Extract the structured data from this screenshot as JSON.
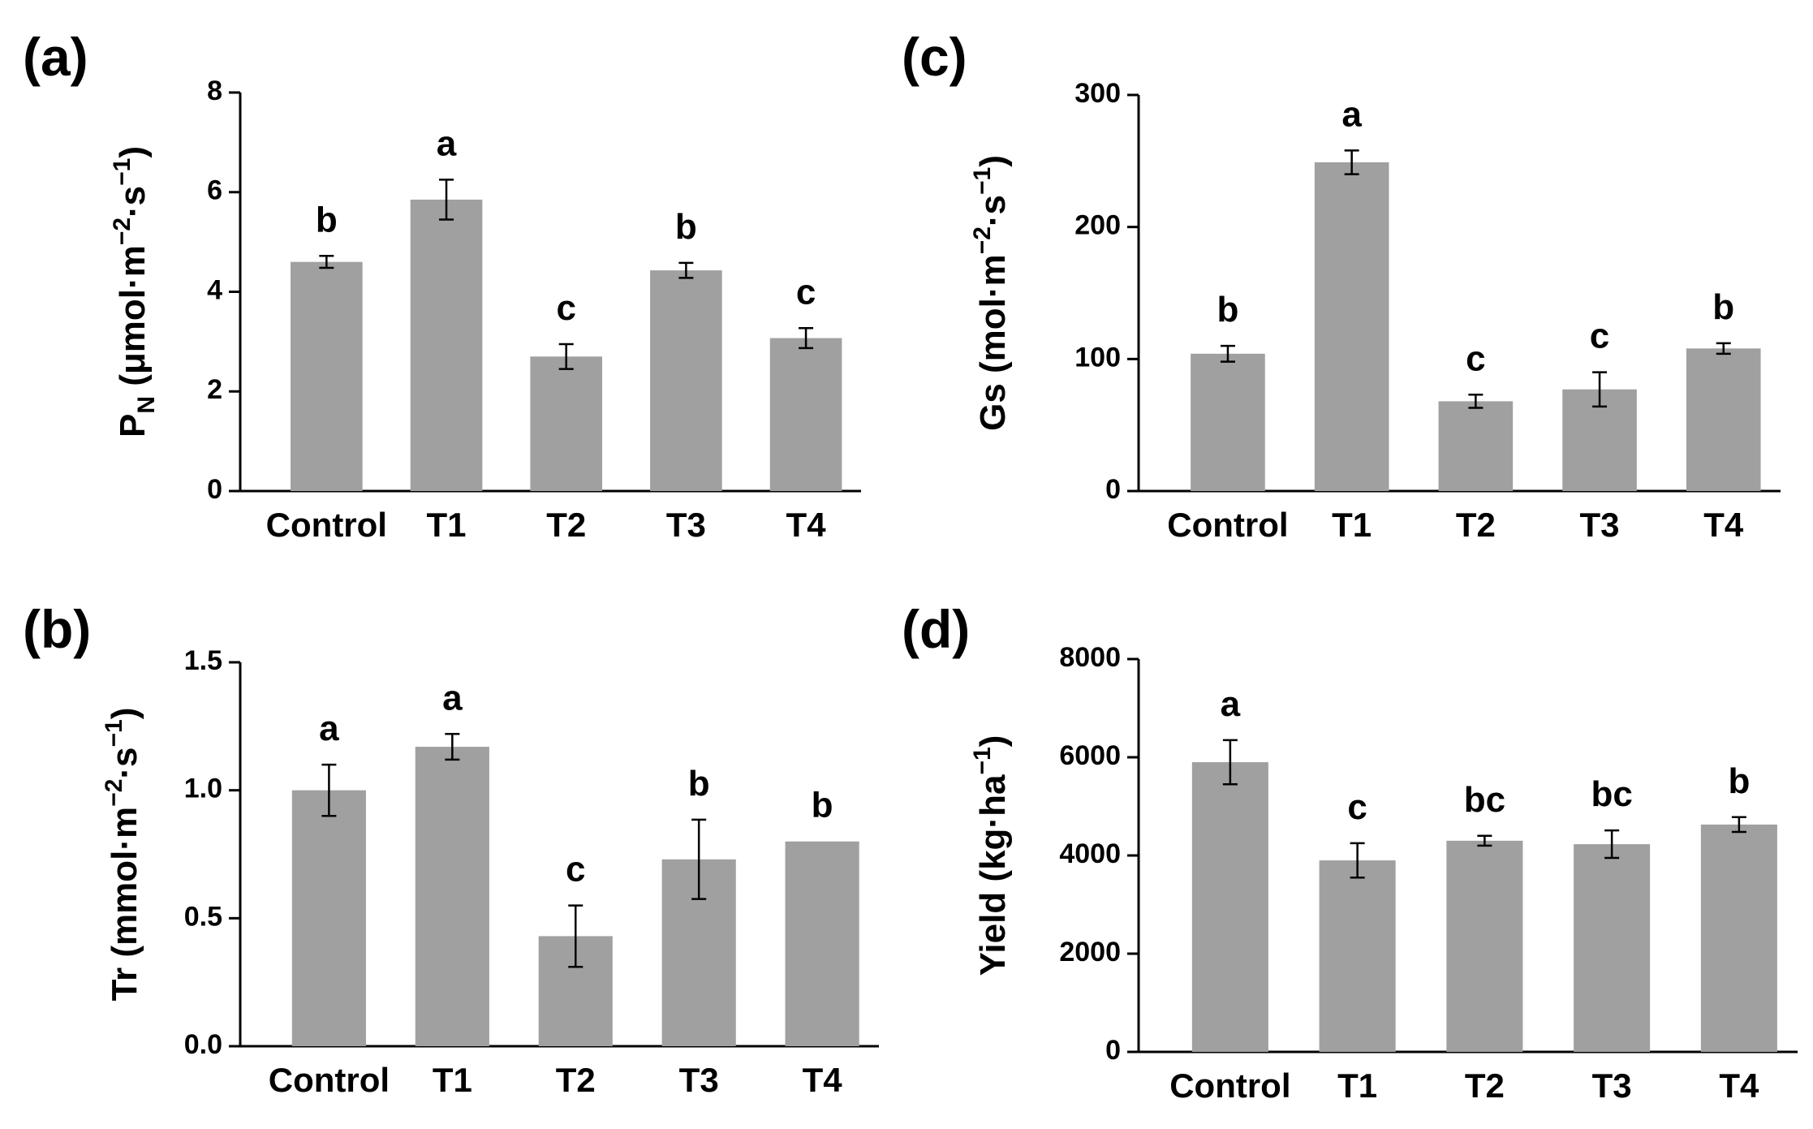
{
  "chart_data": [
    {
      "type": "bar",
      "panel_label": "(a)",
      "y_label": [
        "P",
        "N",
        " (μmol·m",
        "−2",
        "·s",
        "−1",
        ")"
      ],
      "categories": [
        "Control",
        "T1",
        "T2",
        "T3",
        "T4"
      ],
      "values": [
        4.6,
        5.85,
        2.7,
        4.43,
        3.07
      ],
      "errors": [
        0.12,
        0.4,
        0.25,
        0.15,
        0.2
      ],
      "annotations": [
        "b",
        "a",
        "c",
        "b",
        "c"
      ],
      "color": "#a0a0a0",
      "ylim": [
        0,
        8
      ],
      "yticks": [
        0,
        2,
        4,
        6,
        8
      ]
    },
    {
      "type": "bar",
      "panel_label": "(b)",
      "y_label": [
        "Tr (mmol·m",
        "−2",
        "·s",
        "−1",
        ")"
      ],
      "categories": [
        "Control",
        "T1",
        "T2",
        "T3",
        "T4"
      ],
      "values": [
        1.0,
        1.17,
        0.43,
        0.73,
        0.8
      ],
      "errors": [
        0.1,
        0.05,
        0.12,
        0.155,
        null
      ],
      "annotations": [
        "a",
        "a",
        "c",
        "b",
        "b"
      ],
      "color": "#a0a0a0",
      "ylim": [
        0,
        1.5
      ],
      "yticks": [
        {
          "value": 0,
          "label": "0.0"
        },
        0.5,
        {
          "value": 1,
          "label": "1.0"
        },
        1.5
      ]
    },
    {
      "type": "bar",
      "panel_label": "(c)",
      "y_label": [
        "Gs (mol·m",
        "−2",
        "·s",
        "−1",
        ")"
      ],
      "categories": [
        "Control",
        "T1",
        "T2",
        "T3",
        "T4"
      ],
      "values": [
        104,
        249,
        68,
        77,
        108
      ],
      "errors": [
        6,
        9,
        5,
        13,
        4
      ],
      "annotations": [
        "b",
        "a",
        "c",
        "c",
        "b"
      ],
      "color": "#a0a0a0",
      "ylim": [
        0,
        300
      ],
      "yticks": [
        0,
        100,
        200,
        300
      ]
    },
    {
      "type": "bar",
      "panel_label": "(d)",
      "y_label": [
        "Yield (kg·ha",
        "−1",
        ")"
      ],
      "categories": [
        "Control",
        "T1",
        "T2",
        "T3",
        "T4"
      ],
      "values": [
        5900,
        3900,
        4300,
        4230,
        4630
      ],
      "errors": [
        450,
        350,
        100,
        280,
        150
      ],
      "annotations": [
        "a",
        "c",
        "bc",
        "bc",
        "b"
      ],
      "color": "#a0a0a0",
      "ylim": [
        0,
        8000
      ],
      "yticks": [
        0,
        2000,
        4000,
        6000,
        8000
      ]
    }
  ]
}
